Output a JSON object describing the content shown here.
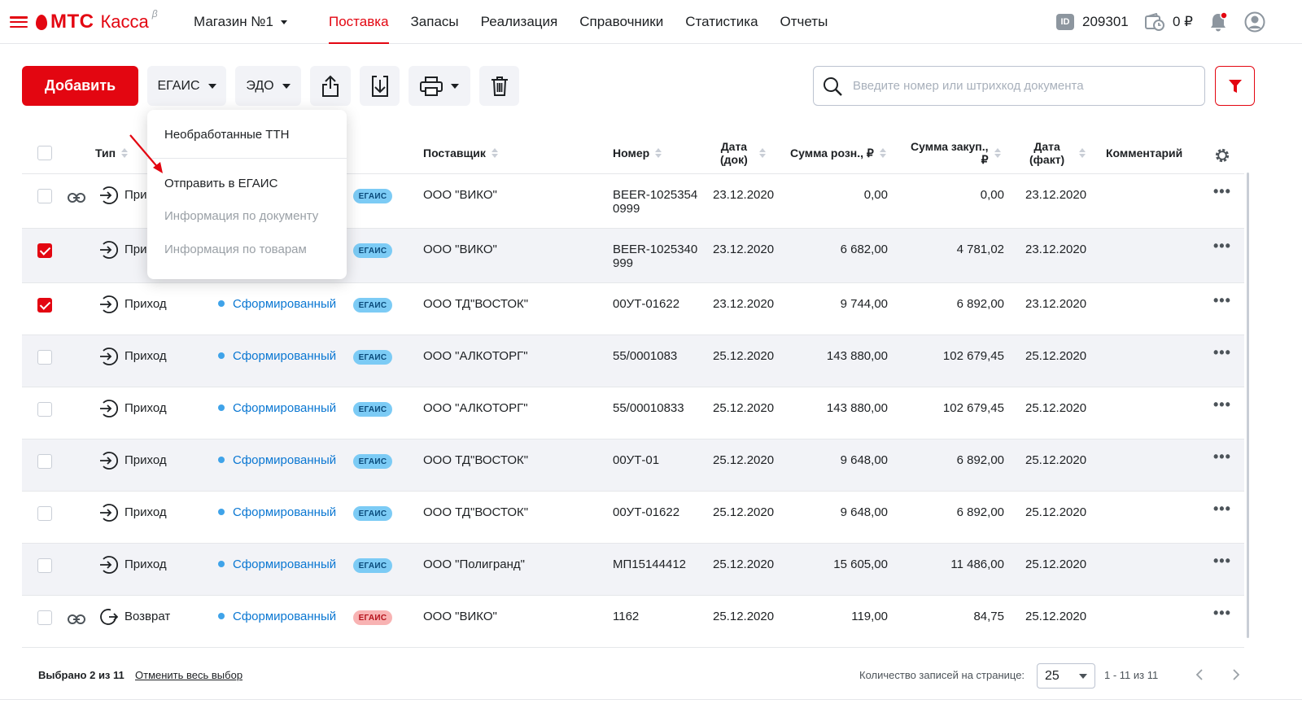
{
  "header": {
    "logo_brand": "МТС",
    "logo_product": "Касса",
    "logo_beta": "β",
    "store": "Магазин №1",
    "nav": [
      "Поставка",
      "Запасы",
      "Реализация",
      "Справочники",
      "Статистика",
      "Отчеты"
    ],
    "active_nav": "Поставка",
    "id_label": "ID",
    "id_value": "209301",
    "balance": "0 ₽"
  },
  "toolbar": {
    "add_label": "Добавить",
    "egais_label": "ЕГАИС",
    "edo_label": "ЭДО",
    "search_placeholder": "Введите номер или штрихкод документа"
  },
  "dropdown": {
    "items": [
      "Необработанные ТТН",
      "Отправить в ЕГАИС",
      "Информация по документу",
      "Информация по товарам"
    ],
    "disabled": [
      false,
      false,
      true,
      true
    ]
  },
  "table": {
    "headers": {
      "type": "Тип",
      "supplier": "Поставщик",
      "number": "Номер",
      "date_doc": [
        "Дата",
        "(док)"
      ],
      "sum_retail": "Сумма розн., ₽",
      "sum_purchase": [
        "Сумма закуп.,",
        "₽"
      ],
      "date_fact": [
        "Дата",
        "(факт)"
      ],
      "comment": "Комментарий"
    },
    "rows": [
      {
        "checked": false,
        "link": true,
        "kind": "in",
        "type": "При",
        "status": "",
        "tag": "ЕГАИС",
        "tag_color": "blue",
        "supplier": "ООО \"ВИКО\"",
        "number": [
          "BEER-1025354",
          "0999"
        ],
        "date_doc": "23.12.2020",
        "sum_retail": "0,00",
        "sum_purchase": "0,00",
        "date_fact": "23.12.2020"
      },
      {
        "checked": true,
        "link": false,
        "kind": "in",
        "type": "При",
        "status": "",
        "tag": "ЕГАИС",
        "tag_color": "blue",
        "supplier": "ООО \"ВИКО\"",
        "number": [
          "BEER-1025340",
          "999"
        ],
        "date_doc": "23.12.2020",
        "sum_retail": "6 682,00",
        "sum_purchase": "4 781,02",
        "date_fact": "23.12.2020"
      },
      {
        "checked": true,
        "link": false,
        "kind": "in",
        "type": "Приход",
        "status": "Сформированный",
        "tag": "ЕГАИС",
        "tag_color": "blue",
        "supplier": "ООО ТД\"ВОСТОК\"",
        "number": [
          "00УТ-01622"
        ],
        "date_doc": "23.12.2020",
        "sum_retail": "9 744,00",
        "sum_purchase": "6 892,00",
        "date_fact": "23.12.2020"
      },
      {
        "checked": false,
        "link": false,
        "kind": "in",
        "type": "Приход",
        "status": "Сформированный",
        "tag": "ЕГАИС",
        "tag_color": "blue",
        "supplier": "ООО \"АЛКОТОРГ\"",
        "number": [
          "55/0001083"
        ],
        "date_doc": "25.12.2020",
        "sum_retail": "143 880,00",
        "sum_purchase": "102 679,45",
        "date_fact": "25.12.2020"
      },
      {
        "checked": false,
        "link": false,
        "kind": "in",
        "type": "Приход",
        "status": "Сформированный",
        "tag": "ЕГАИС",
        "tag_color": "blue",
        "supplier": "ООО \"АЛКОТОРГ\"",
        "number": [
          "55/00010833"
        ],
        "date_doc": "25.12.2020",
        "sum_retail": "143 880,00",
        "sum_purchase": "102 679,45",
        "date_fact": "25.12.2020"
      },
      {
        "checked": false,
        "link": false,
        "kind": "in",
        "type": "Приход",
        "status": "Сформированный",
        "tag": "ЕГАИС",
        "tag_color": "blue",
        "supplier": "ООО ТД\"ВОСТОК\"",
        "number": [
          "00УТ-01"
        ],
        "date_doc": "25.12.2020",
        "sum_retail": "9 648,00",
        "sum_purchase": "6 892,00",
        "date_fact": "25.12.2020"
      },
      {
        "checked": false,
        "link": false,
        "kind": "in",
        "type": "Приход",
        "status": "Сформированный",
        "tag": "ЕГАИС",
        "tag_color": "blue",
        "supplier": "ООО ТД\"ВОСТОК\"",
        "number": [
          "00УТ-01622"
        ],
        "date_doc": "25.12.2020",
        "sum_retail": "9 648,00",
        "sum_purchase": "6 892,00",
        "date_fact": "25.12.2020"
      },
      {
        "checked": false,
        "link": false,
        "kind": "in",
        "type": "Приход",
        "status": "Сформированный",
        "tag": "ЕГАИС",
        "tag_color": "blue",
        "supplier": "ООО \"Полигранд\"",
        "number": [
          "МП15144412"
        ],
        "date_doc": "25.12.2020",
        "sum_retail": "15 605,00",
        "sum_purchase": "11 486,00",
        "date_fact": "25.12.2020"
      },
      {
        "checked": false,
        "link": true,
        "kind": "return",
        "type": "Возврат",
        "status": "Сформированный",
        "tag": "ЕГАИС",
        "tag_color": "red",
        "supplier": "ООО \"ВИКО\"",
        "number": [
          "1162"
        ],
        "date_doc": "25.12.2020",
        "sum_retail": "119,00",
        "sum_purchase": "84,75",
        "date_fact": "25.12.2020"
      }
    ],
    "row_action": "•••"
  },
  "footer": {
    "selected": "Выбрано 2 из 11",
    "cancel_selection": "Отменить весь выбор",
    "per_page_label": "Количество записей на странице:",
    "per_page_value": "25",
    "range": "1 - 11 из 11"
  },
  "colors": {
    "accent": "#e30611",
    "status_blue": "#0a77d2",
    "tag_blue": "#7ccbf5",
    "tag_red": "#f8b3b3"
  }
}
